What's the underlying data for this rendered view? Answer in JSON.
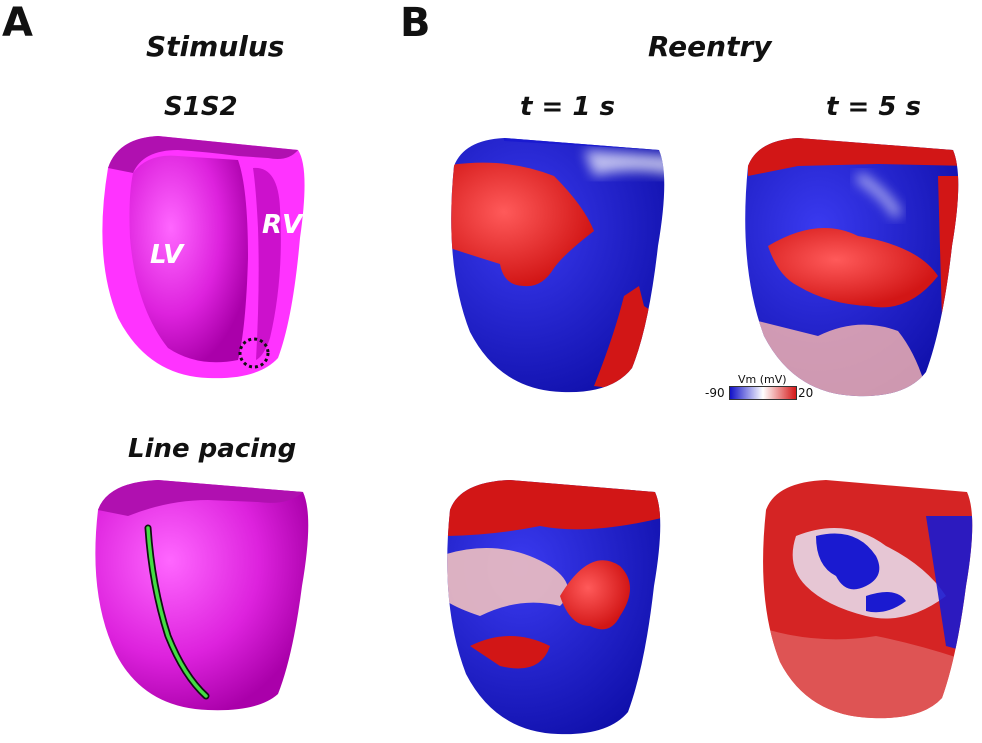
{
  "panels": {
    "a": {
      "letter": "A",
      "heading": "Stimulus",
      "row1_title": "S1S2",
      "row2_title": "Line pacing",
      "lv_label": "LV",
      "rv_label": "RV"
    },
    "b": {
      "letter": "B",
      "heading": "Reentry",
      "col1_title": "t = 1 s",
      "col2_title": "t = 5 s"
    }
  },
  "colorbar": {
    "title": "Vm (mV)",
    "min": "-90",
    "max": "20",
    "colors": [
      "#1010c8",
      "#ffffff",
      "#d61818"
    ]
  },
  "colors": {
    "myocardium": "#dc1fdc",
    "septum": "#ff33ff",
    "pacing_line": "#44dd44",
    "depolarized": "#de2020",
    "resting": "#1a1ad0"
  }
}
